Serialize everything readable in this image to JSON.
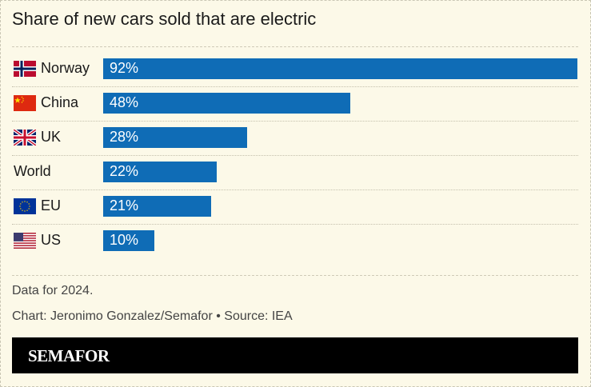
{
  "chart_data": {
    "type": "bar",
    "orientation": "horizontal",
    "title": "Share of new cars sold that are electric",
    "categories": [
      "Norway",
      "China",
      "UK",
      "World",
      "EU",
      "US"
    ],
    "values": [
      92,
      48,
      28,
      22,
      21,
      10
    ],
    "value_labels": [
      "92%",
      "48%",
      "28%",
      "22%",
      "21%",
      "10%"
    ],
    "flags": [
      "norway-flag",
      "china-flag",
      "uk-flag",
      "",
      "eu-flag",
      "us-flag"
    ],
    "unit": "%",
    "xlim": [
      0,
      92
    ],
    "grid": false,
    "bar_color": "#0f6cb6"
  },
  "footer": {
    "note": "Data for 2024.",
    "credit": "Chart: Jeronimo Gonzalez/Semafor • Source: IEA",
    "brand": "SEMAFOR"
  }
}
